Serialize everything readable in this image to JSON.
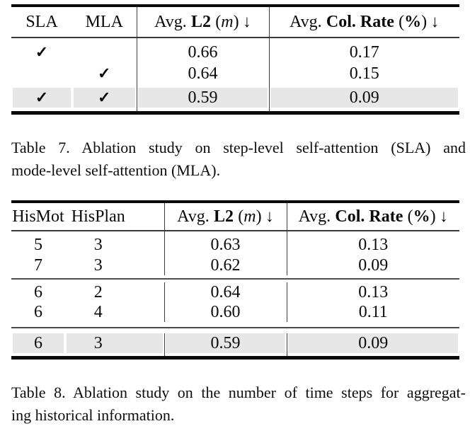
{
  "page": {
    "highlight_color": "#e7e7e7",
    "text_color": "#0a0a0a"
  },
  "table7": {
    "header": {
      "col1": "SLA",
      "col2": "MLA",
      "metric_l2": {
        "pre": "Avg.",
        "name": "L2",
        "open": "(",
        "var": "m",
        "close": ")",
        "arrow": "↓"
      },
      "metric_col": {
        "pre": "Avg.",
        "name": "Col. Rate",
        "open": "(",
        "var": "%",
        "close": ")",
        "arrow": "↓"
      }
    },
    "rows": [
      {
        "sla": "✓",
        "mla": "",
        "l2": "0.66",
        "col_rate": "0.17"
      },
      {
        "sla": "",
        "mla": "✓",
        "l2": "0.64",
        "col_rate": "0.15"
      },
      {
        "sla": "✓",
        "mla": "✓",
        "l2": "0.59",
        "col_rate": "0.09"
      }
    ],
    "caption": {
      "line1": "Table 7.  Ablation study on step-level self-attention (SLA) and",
      "line2": "mode-level self-attention (MLA)."
    }
  },
  "table8": {
    "header": {
      "col1": "HisMot",
      "col2": "HisPlan",
      "metric_l2": {
        "pre": "Avg.",
        "name": "L2",
        "open": "(",
        "var": "m",
        "close": ")",
        "arrow": "↓"
      },
      "metric_col": {
        "pre": "Avg.",
        "name": "Col. Rate",
        "open": "(",
        "var": "%",
        "close": ")",
        "arrow": "↓"
      }
    },
    "rows": [
      {
        "hismot": "5",
        "hisplan": "3",
        "l2": "0.63",
        "col_rate": "0.13"
      },
      {
        "hismot": "7",
        "hisplan": "3",
        "l2": "0.62",
        "col_rate": "0.09"
      },
      {
        "hismot": "6",
        "hisplan": "2",
        "l2": "0.64",
        "col_rate": "0.13"
      },
      {
        "hismot": "6",
        "hisplan": "4",
        "l2": "0.60",
        "col_rate": "0.11"
      },
      {
        "hismot": "6",
        "hisplan": "3",
        "l2": "0.59",
        "col_rate": "0.09"
      }
    ],
    "caption": {
      "line1": "Table 8. Ablation study on the number of time steps for aggregat-",
      "line2": "ing historical information."
    }
  }
}
